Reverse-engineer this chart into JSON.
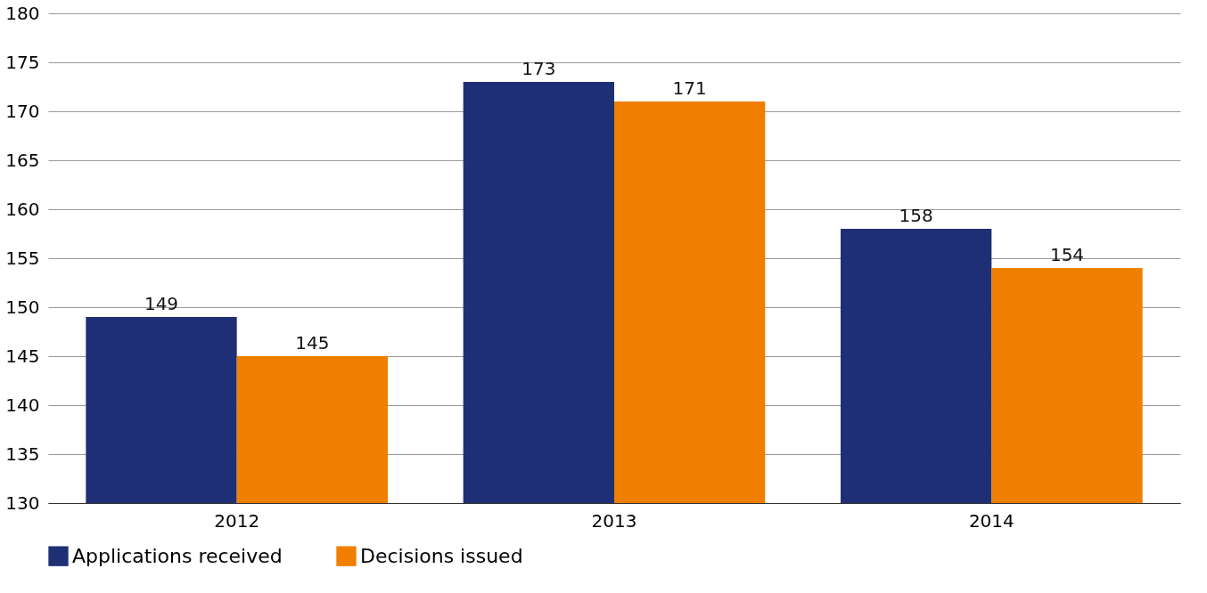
{
  "chart_data": {
    "type": "bar",
    "categories": [
      "2012",
      "2013",
      "2014"
    ],
    "series": [
      {
        "name": "Applications received",
        "color": "#1f2f75",
        "values": [
          149,
          173,
          158
        ]
      },
      {
        "name": "Decisions issued",
        "color": "#f07f00",
        "values": [
          145,
          171,
          154
        ]
      }
    ],
    "ylim": [
      130,
      180
    ],
    "yticks": [
      130,
      135,
      140,
      145,
      150,
      155,
      160,
      165,
      170,
      175,
      180
    ],
    "grid": "y",
    "legend": "bottom",
    "data_labels": true
  }
}
